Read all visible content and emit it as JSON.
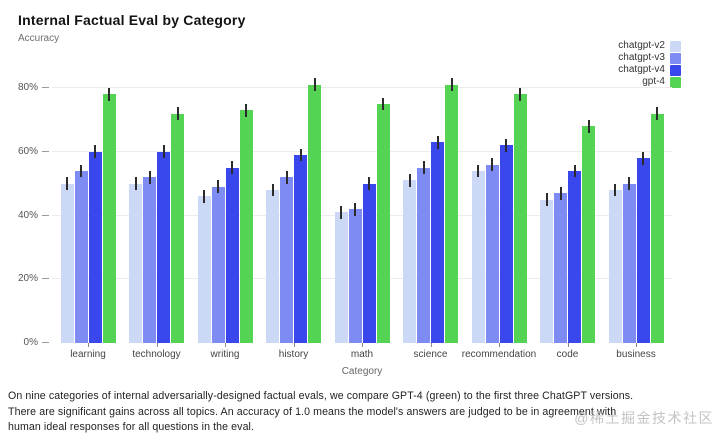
{
  "title": "Internal Factual Eval by Category",
  "subtitle": "Accuracy",
  "chart_data": {
    "type": "bar",
    "title": "Internal Factual Eval by Category",
    "ylabel": "Accuracy",
    "xlabel": "Category",
    "categories": [
      "learning",
      "technology",
      "writing",
      "history",
      "math",
      "science",
      "recommendation",
      "code",
      "business"
    ],
    "series": [
      {
        "name": "chatgpt-v2",
        "color": "#ccd9f6",
        "values": [
          50,
          50,
          46,
          48,
          41,
          51,
          54,
          45,
          48
        ],
        "error": 2
      },
      {
        "name": "chatgpt-v3",
        "color": "#7d8bf2",
        "values": [
          54,
          52,
          49,
          52,
          42,
          55,
          56,
          47,
          50
        ],
        "error": 2
      },
      {
        "name": "chatgpt-v4",
        "color": "#3a47ed",
        "values": [
          60,
          60,
          55,
          59,
          50,
          63,
          62,
          54,
          58
        ],
        "error": 2
      },
      {
        "name": "gpt-4",
        "color": "#54d354",
        "values": [
          78,
          72,
          73,
          81,
          75,
          81,
          78,
          68,
          72
        ],
        "error": 2
      }
    ],
    "yticks": [
      0,
      20,
      40,
      60,
      80
    ],
    "ytick_labels": [
      "0%",
      "20%",
      "40%",
      "60%",
      "80%"
    ],
    "ylim": [
      0,
      82
    ],
    "grid": true,
    "legend_position": "top-right",
    "error_bars": true
  },
  "caption": [
    "On nine categories of internal adversarially-designed factual evals, we compare GPT-4 (green) to the first three ChatGPT versions.",
    "There are significant gains across all topics. An accuracy of 1.0 means the model's answers are judged to be in agreement with",
    "human ideal responses for all questions in the eval."
  ],
  "watermark": "@稀土掘金技术社区"
}
